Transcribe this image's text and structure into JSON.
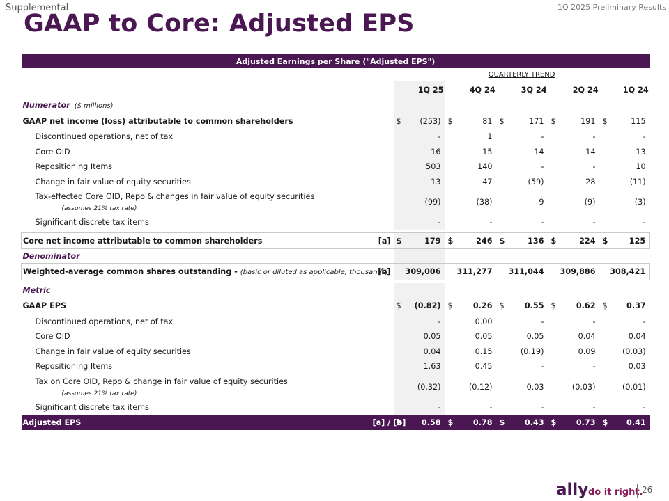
{
  "page": {
    "supplemental": "Supplemental",
    "prelim": "1Q 2025 Preliminary Results",
    "title": "GAAP to Core: Adjusted EPS",
    "page_number": "26"
  },
  "footer": {
    "logo": "ally",
    "tagline": "do it right."
  },
  "table": {
    "header": "Adjusted Earnings per Share (\"Adjusted EPS\")",
    "trend_label": "QUARTERLY TREND",
    "columns": [
      "1Q 25",
      "4Q 24",
      "3Q 24",
      "2Q 24",
      "1Q 24"
    ],
    "numerator_label": "Numerator",
    "numerator_unit": "($ millions)",
    "gaap_net_income": {
      "label": "GAAP net income (loss) attributable to common shareholders",
      "currency": "$",
      "values": [
        "(253)",
        "81",
        "171",
        "191",
        "115"
      ]
    },
    "numerator_rows": [
      {
        "label": "Discontinued operations, net of tax",
        "values": [
          "-",
          "1",
          "-",
          "-",
          "-"
        ]
      },
      {
        "label": "Core OID",
        "values": [
          "16",
          "15",
          "14",
          "14",
          "13"
        ]
      },
      {
        "label": "Repositioning Items",
        "values": [
          "503",
          "140",
          "-",
          "-",
          "10"
        ]
      },
      {
        "label": "Change in fair value of equity securities",
        "values": [
          "13",
          "47",
          "(59)",
          "28",
          "(11)"
        ]
      }
    ],
    "numerator_tax": {
      "label": "Tax-effected Core OID, Repo & changes in fair value of equity securities",
      "note": "(assumes 21% tax rate)",
      "values": [
        "(99)",
        "(38)",
        "9",
        "(9)",
        "(3)"
      ]
    },
    "numerator_discrete": {
      "label": "Significant discrete tax items",
      "values": [
        "-",
        "-",
        "-",
        "-",
        "-"
      ]
    },
    "core_net_income": {
      "label": "Core net income attributable to common shareholders",
      "ref": "[a]",
      "currency": "$",
      "values": [
        "179",
        "246",
        "136",
        "224",
        "125"
      ]
    },
    "denominator_label": "Denominator",
    "weighted_shares": {
      "label": "Weighted-average common shares outstanding -",
      "note": "(basic or diluted as applicable, thousands)",
      "ref": "[b]",
      "values": [
        "309,006",
        "311,277",
        "311,044",
        "309,886",
        "308,421"
      ]
    },
    "metric_label": "Metric",
    "gaap_eps": {
      "label": "GAAP EPS",
      "currency": "$",
      "values": [
        "(0.82)",
        "0.26",
        "0.55",
        "0.62",
        "0.37"
      ]
    },
    "metric_rows": [
      {
        "label": "Discontinued operations, net of tax",
        "values": [
          "-",
          "0.00",
          "-",
          "-",
          "-"
        ]
      },
      {
        "label": "Core OID",
        "values": [
          "0.05",
          "0.05",
          "0.05",
          "0.04",
          "0.04"
        ]
      },
      {
        "label": "Change in fair value of equity securities",
        "values": [
          "0.04",
          "0.15",
          "(0.19)",
          "0.09",
          "(0.03)"
        ]
      },
      {
        "label": "Repositioning Items",
        "values": [
          "1.63",
          "0.45",
          "-",
          "-",
          "0.03"
        ]
      }
    ],
    "metric_tax": {
      "label": "Tax on Core OID, Repo & change in fair value of equity securities",
      "note": "(assumes 21% tax rate)",
      "values": [
        "(0.32)",
        "(0.12)",
        "0.03",
        "(0.03)",
        "(0.01)"
      ]
    },
    "metric_discrete": {
      "label": "Significant discrete tax items",
      "values": [
        "-",
        "-",
        "-",
        "-",
        "-"
      ]
    },
    "adjusted_eps": {
      "label": "Adjusted EPS",
      "ref": "[a] / [b]",
      "currency": "$",
      "values": [
        "0.58",
        "0.78",
        "0.43",
        "0.73",
        "0.41"
      ]
    }
  }
}
